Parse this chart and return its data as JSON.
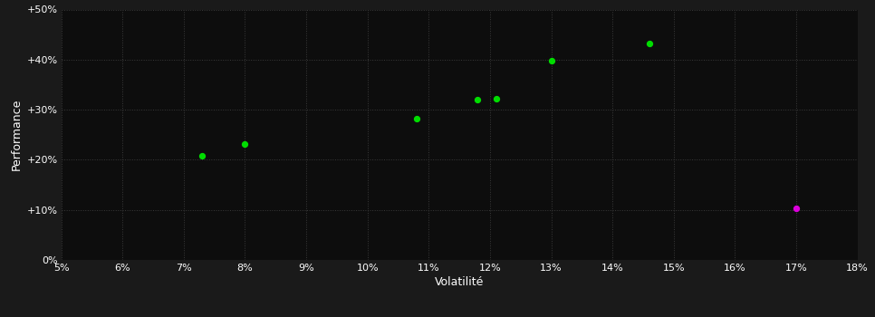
{
  "xlabel": "Volatilité",
  "ylabel": "Performance",
  "background_color": "#1a1a1a",
  "plot_bg_color": "#0d0d0d",
  "grid_color": "#3a3a3a",
  "text_color": "#ffffff",
  "xlim": [
    0.05,
    0.18
  ],
  "ylim": [
    0.0,
    0.5
  ],
  "xticks": [
    0.05,
    0.06,
    0.07,
    0.08,
    0.09,
    0.1,
    0.11,
    0.12,
    0.13,
    0.14,
    0.15,
    0.16,
    0.17,
    0.18
  ],
  "yticks": [
    0.0,
    0.1,
    0.2,
    0.3,
    0.4,
    0.5
  ],
  "green_points": [
    [
      0.073,
      0.208
    ],
    [
      0.08,
      0.232
    ],
    [
      0.108,
      0.282
    ],
    [
      0.118,
      0.32
    ],
    [
      0.121,
      0.322
    ],
    [
      0.13,
      0.398
    ],
    [
      0.146,
      0.432
    ]
  ],
  "magenta_points": [
    [
      0.17,
      0.103
    ]
  ],
  "green_color": "#00dd00",
  "magenta_color": "#dd00dd",
  "point_size": 18,
  "tick_labelsize": 8,
  "label_fontsize": 9
}
